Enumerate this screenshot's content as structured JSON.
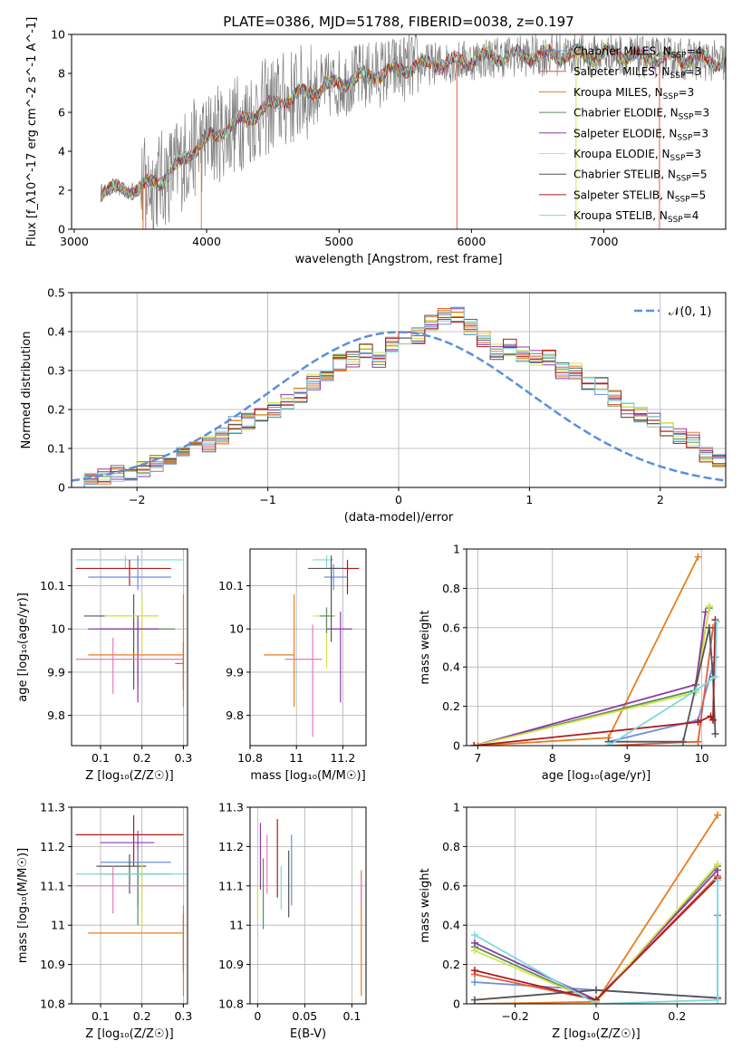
{
  "figure_title": "PLATE=0386, MJD=51788, FIBERID=0038, z=0.197",
  "colors": {
    "Chabrier MILES": "#6a8fdc",
    "Salpeter MILES": "#e25d3a",
    "Kroupa MILES": "#e67e22",
    "Chabrier ELODIE": "#5a8f5a",
    "Salpeter ELODIE": "#8e3aa8",
    "Kroupa ELODIE": "#d7e34a",
    "Chabrier STELIB": "#555555",
    "Salpeter STELIB": "#b01a1a",
    "Kroupa STELIB": "#7fd7e0",
    "Pink": "#ee77bb",
    "Normal": "#5b8fd9",
    "data": "#808080"
  },
  "chart_data": [
    {
      "id": "spectrum",
      "type": "line",
      "title": "PLATE=0386, MJD=51788, FIBERID=0038, z=0.197",
      "xlabel": "wavelength [Angstrom, rest frame]",
      "ylabel": "Flux [f_λ10^-17 erg cm^-2 s^-1 A^-1]",
      "xlim": [
        2980,
        7920
      ],
      "ylim": [
        0,
        10
      ],
      "xticks": [
        3000,
        4000,
        5000,
        6000,
        7000
      ],
      "yticks": [
        0,
        2,
        4,
        6,
        8,
        10
      ],
      "grid": false,
      "legend_position": "top-right",
      "x_range_data": [
        3200,
        7920
      ],
      "legend": [
        {
          "model": "Chabrier MILES",
          "nssp": "4"
        },
        {
          "model": "Salpeter MILES",
          "nssp": "3"
        },
        {
          "model": "Kroupa MILES",
          "nssp": "3"
        },
        {
          "model": "Chabrier ELODIE",
          "nssp": "3"
        },
        {
          "model": "Salpeter ELODIE",
          "nssp": "3"
        },
        {
          "model": "Kroupa ELODIE",
          "nssp": "3"
        },
        {
          "model": "Chabrier STELIB",
          "nssp": "5"
        },
        {
          "model": "Salpeter STELIB",
          "nssp": "5"
        },
        {
          "model": "Kroupa STELIB",
          "nssp": "4"
        }
      ],
      "continuum": {
        "x": [
          3200,
          3500,
          3700,
          3900,
          4100,
          4300,
          4500,
          4700,
          4900,
          5100,
          5300,
          5500,
          5700,
          5900,
          6100,
          6300,
          6500,
          6700,
          6900,
          7100,
          7300,
          7500,
          7700,
          7900
        ],
        "y": [
          2.0,
          2.1,
          2.7,
          4.1,
          5.0,
          5.7,
          6.4,
          6.9,
          7.3,
          7.7,
          8.0,
          8.3,
          8.5,
          8.6,
          8.8,
          8.9,
          8.9,
          9.0,
          8.9,
          9.0,
          8.8,
          8.8,
          8.7,
          8.6
        ]
      }
    },
    {
      "id": "residuals",
      "type": "histogram",
      "xlabel": "(data-model)/error",
      "ylabel": "Normed distribution",
      "xlim": [
        -2.5,
        2.5
      ],
      "ylim": [
        0,
        0.5
      ],
      "xticks": [
        -2,
        -1,
        0,
        1,
        2
      ],
      "yticks": [
        0.0,
        0.1,
        0.2,
        0.3,
        0.4,
        0.5
      ],
      "grid": true,
      "legend_position": "top-right",
      "normal_label": "𝒩(0, 1)",
      "bin_width": 0.1,
      "bin_start": -2.5,
      "base_values": [
        0.02,
        0.025,
        0.03,
        0.035,
        0.04,
        0.05,
        0.06,
        0.07,
        0.09,
        0.095,
        0.11,
        0.13,
        0.16,
        0.17,
        0.19,
        0.2,
        0.22,
        0.24,
        0.27,
        0.29,
        0.32,
        0.33,
        0.35,
        0.33,
        0.37,
        0.38,
        0.39,
        0.42,
        0.44,
        0.44,
        0.41,
        0.38,
        0.35,
        0.36,
        0.34,
        0.33,
        0.33,
        0.3,
        0.3,
        0.27,
        0.26,
        0.23,
        0.2,
        0.19,
        0.17,
        0.15,
        0.13,
        0.12,
        0.08,
        0.07,
        0.06
      ],
      "models": [
        "Chabrier MILES",
        "Salpeter MILES",
        "Kroupa MILES",
        "Chabrier ELODIE",
        "Salpeter ELODIE",
        "Kroupa ELODIE",
        "Chabrier STELIB",
        "Salpeter STELIB",
        "Kroupa STELIB"
      ]
    },
    {
      "id": "age_vs_Z",
      "type": "errorbar",
      "xlabel": "Z [log₁₀(Z/Z☉)]",
      "ylabel": "age  [log₁₀(age/yr)]",
      "xlim": [
        0.03,
        0.31
      ],
      "ylim": [
        9.73,
        10.185
      ],
      "xticks": [
        0.1,
        0.2,
        0.3
      ],
      "yticks": [
        9.8,
        9.9,
        10.0,
        10.1
      ],
      "grid": true,
      "points": [
        {
          "model": "Kroupa STELIB",
          "x": 0.16,
          "xerr": [
            0.12,
            0.14
          ],
          "y": 10.16,
          "yerr": [
            0.02,
            0.01
          ]
        },
        {
          "model": "Salpeter STELIB",
          "x": 0.17,
          "xerr": [
            0.13,
            0.1
          ],
          "y": 10.14,
          "yerr": [
            0.04,
            0.02
          ]
        },
        {
          "model": "Chabrier MILES",
          "x": 0.19,
          "xerr": [
            0.12,
            0.08
          ],
          "y": 10.12,
          "yerr": [
            0.03,
            0.05
          ]
        },
        {
          "model": "Chabrier STELIB",
          "x": 0.18,
          "xerr": [
            0.12,
            0.06
          ],
          "y": 10.03,
          "yerr": [
            0.17,
            0.05
          ]
        },
        {
          "model": "Kroupa ELODIE",
          "x": 0.2,
          "xerr": [
            0.09,
            0.04
          ],
          "y": 10.03,
          "yerr": [
            0.08,
            0.05
          ]
        },
        {
          "model": "Chabrier ELODIE",
          "x": 0.19,
          "xerr": [
            0.09,
            0.09
          ],
          "y": 10.0,
          "yerr": [
            0.13,
            0.02
          ]
        },
        {
          "model": "Salpeter ELODIE",
          "x": 0.19,
          "xerr": [
            0.12,
            0.05
          ],
          "y": 10.0,
          "yerr": [
            0.17,
            0.03
          ]
        },
        {
          "model": "Kroupa MILES",
          "x": 0.3,
          "xerr": [
            0.23,
            0.0
          ],
          "y": 9.94,
          "yerr": [
            0.12,
            0.14
          ]
        },
        {
          "model": "Pink",
          "x": 0.13,
          "xerr": [
            0.09,
            0.17
          ],
          "y": 9.93,
          "yerr": [
            0.08,
            0.05
          ]
        },
        {
          "model": "Salpeter MILES",
          "x": 0.3,
          "xerr": [
            0.02,
            0.0
          ],
          "y": 9.92,
          "yerr": [
            0.06,
            0.05
          ]
        }
      ]
    },
    {
      "id": "age_vs_mass",
      "type": "errorbar",
      "xlabel": "mass [log₁₀(M/M☉)]",
      "ylabel": "",
      "xlim": [
        10.8,
        11.3
      ],
      "ylim": [
        9.73,
        10.185
      ],
      "xticks": [
        10.8,
        11.0,
        11.2
      ],
      "yticks": [
        9.8,
        9.9,
        10.0,
        10.1
      ],
      "grid": true,
      "points": [
        {
          "model": "Kroupa STELIB",
          "x": 11.13,
          "xerr": [
            0.06,
            0.03
          ],
          "y": 10.16,
          "yerr": [
            0.02,
            0.01
          ]
        },
        {
          "model": "Salpeter STELIB",
          "x": 11.22,
          "xerr": [
            0.08,
            0.05
          ],
          "y": 10.14,
          "yerr": [
            0.06,
            0.02
          ]
        },
        {
          "model": "Chabrier MILES",
          "x": 11.16,
          "xerr": [
            0.04,
            0.06
          ],
          "y": 10.12,
          "yerr": [
            0.03,
            0.03
          ]
        },
        {
          "model": "Chabrier STELIB",
          "x": 11.15,
          "xerr": [
            0.1,
            0.05
          ],
          "y": 10.14,
          "yerr": [
            0.17,
            0.03
          ]
        },
        {
          "model": "Kroupa ELODIE",
          "x": 11.13,
          "xerr": [
            0.06,
            0.04
          ],
          "y": 10.03,
          "yerr": [
            0.12,
            0.02
          ]
        },
        {
          "model": "Chabrier ELODIE",
          "x": 11.13,
          "xerr": [
            0.03,
            0.03
          ],
          "y": 10.03,
          "yerr": [
            0.04,
            0.02
          ]
        },
        {
          "model": "Salpeter ELODIE",
          "x": 11.19,
          "xerr": [
            0.06,
            0.05
          ],
          "y": 10.0,
          "yerr": [
            0.17,
            0.04
          ]
        },
        {
          "model": "Kroupa MILES",
          "x": 10.99,
          "xerr": [
            0.13,
            0.0
          ],
          "y": 9.94,
          "yerr": [
            0.12,
            0.14
          ]
        },
        {
          "model": "Pink",
          "x": 11.07,
          "xerr": [
            0.12,
            0.04
          ],
          "y": 9.93,
          "yerr": [
            0.18,
            0.08
          ]
        }
      ]
    },
    {
      "id": "massweight_vs_age",
      "type": "line",
      "xlabel": "age  [log₁₀(age/yr)]",
      "ylabel": "mass weight",
      "xlim": [
        6.85,
        10.32
      ],
      "ylim": [
        0,
        1
      ],
      "xticks": [
        7,
        8,
        9,
        10
      ],
      "yticks": [
        0.0,
        0.2,
        0.4,
        0.6,
        0.8,
        1.0
      ],
      "grid": true,
      "series": [
        {
          "model": "Chabrier MILES",
          "x": [
            8.75,
            9.95,
            10.18
          ],
          "y": [
            0.02,
            0.13,
            0.45
          ]
        },
        {
          "model": "Salpeter MILES",
          "x": [
            8.75,
            9.95,
            10.15
          ],
          "y": [
            0.0,
            0.02,
            0.6
          ]
        },
        {
          "model": "Kroupa MILES",
          "x": [
            7.0,
            8.75,
            9.95
          ],
          "y": [
            0.0,
            0.04,
            0.96
          ]
        },
        {
          "model": "Chabrier ELODIE",
          "x": [
            6.95,
            9.9,
            10.1
          ],
          "y": [
            0.0,
            0.28,
            0.7
          ]
        },
        {
          "model": "Salpeter ELODIE",
          "x": [
            6.95,
            9.92,
            10.05
          ],
          "y": [
            0.0,
            0.31,
            0.68
          ]
        },
        {
          "model": "Kroupa ELODIE",
          "x": [
            6.95,
            9.92,
            10.1
          ],
          "y": [
            0.0,
            0.27,
            0.71
          ]
        },
        {
          "model": "Chabrier STELIB",
          "x": [
            8.75,
            9.75,
            10.1,
            10.15,
            10.18
          ],
          "y": [
            0.02,
            0.02,
            0.6,
            0.35,
            0.06
          ]
        },
        {
          "model": "Salpeter STELIB",
          "x": [
            6.95,
            9.95,
            10.12,
            10.15,
            10.18
          ],
          "y": [
            0.0,
            0.12,
            0.15,
            0.13,
            0.64
          ]
        },
        {
          "model": "Kroupa STELIB",
          "x": [
            8.75,
            9.92,
            10.18,
            10.2
          ],
          "y": [
            0.0,
            0.28,
            0.35,
            0.63
          ]
        }
      ]
    },
    {
      "id": "mass_vs_Z",
      "type": "errorbar",
      "xlabel": "Z [log₁₀(Z/Z☉)]",
      "ylabel": "mass [log₁₀(M/M☉)]",
      "xlim": [
        0.03,
        0.31
      ],
      "ylim": [
        10.8,
        11.3
      ],
      "xticks": [
        0.1,
        0.2,
        0.3
      ],
      "yticks": [
        10.8,
        10.9,
        11.0,
        11.1,
        11.2,
        11.3
      ],
      "grid": true,
      "points": [
        {
          "model": "Salpeter STELIB",
          "x": 0.18,
          "xerr": [
            0.14,
            0.12
          ],
          "y": 11.23,
          "yerr": [
            0.08,
            0.05
          ]
        },
        {
          "model": "Salpeter ELODIE",
          "x": 0.19,
          "xerr": [
            0.09,
            0.04
          ],
          "y": 11.21,
          "yerr": [
            0.16,
            0.03
          ]
        },
        {
          "model": "Chabrier MILES",
          "x": 0.19,
          "xerr": [
            0.09,
            0.08
          ],
          "y": 11.16,
          "yerr": [
            0.1,
            0.03
          ]
        },
        {
          "model": "Chabrier STELIB",
          "x": 0.17,
          "xerr": [
            0.08,
            0.04
          ],
          "y": 11.15,
          "yerr": [
            0.07,
            0.03
          ]
        },
        {
          "model": "Kroupa ELODIE",
          "x": 0.2,
          "xerr": [
            0.11,
            0.0
          ],
          "y": 11.13,
          "yerr": [
            0.14,
            0.03
          ]
        },
        {
          "model": "Chabrier ELODIE",
          "x": 0.19,
          "xerr": [
            0.09,
            0.08
          ],
          "y": 11.13,
          "yerr": [
            0.13,
            0.03
          ]
        },
        {
          "model": "Kroupa STELIB",
          "x": 0.16,
          "xerr": [
            0.12,
            0.15
          ],
          "y": 11.13,
          "yerr": [
            0.0,
            0.0
          ]
        },
        {
          "model": "Pink",
          "x": 0.13,
          "xerr": [
            0.09,
            0.17
          ],
          "y": 11.1,
          "yerr": [
            0.07,
            0.05
          ]
        },
        {
          "model": "Kroupa MILES",
          "x": 0.3,
          "xerr": [
            0.23,
            0.0
          ],
          "y": 10.98,
          "yerr": [
            0.16,
            0.07
          ]
        },
        {
          "model": "Salpeter MILES",
          "x": 0.3,
          "xerr": [
            0.0,
            0.0
          ],
          "y": 10.98,
          "yerr": [
            0.1,
            0.05
          ]
        }
      ]
    },
    {
      "id": "mass_vs_ebv",
      "type": "errorbar",
      "xlabel": "E(B-V)",
      "ylabel": "",
      "xlim": [
        -0.008,
        0.115
      ],
      "ylim": [
        10.8,
        11.3
      ],
      "xticks": [
        0.0,
        0.05,
        0.1
      ],
      "yticks": [
        10.8,
        10.9,
        11.0,
        11.1,
        11.2,
        11.3
      ],
      "grid": true,
      "points": [
        {
          "model": "Kroupa ELODIE",
          "x": 0.0,
          "yerr": [
            0.07,
            0.02
          ],
          "y": 11.09
        },
        {
          "model": "Salpeter ELODIE",
          "x": 0.003,
          "yerr": [
            0.08,
            0.09
          ],
          "y": 11.17
        },
        {
          "model": "Chabrier ELODIE",
          "x": 0.006,
          "yerr": [
            0.1,
            0.08
          ],
          "y": 11.09
        },
        {
          "model": "Pink",
          "x": 0.01,
          "yerr": [
            0.1,
            0.05
          ],
          "y": 11.18
        },
        {
          "model": "Salpeter STELIB",
          "x": 0.021,
          "yerr": [
            0.14,
            0.06
          ],
          "y": 11.21
        },
        {
          "model": "Kroupa STELIB",
          "x": 0.025,
          "yerr": [
            0.06,
            0.05
          ],
          "y": 11.1
        },
        {
          "model": "Chabrier STELIB",
          "x": 0.033,
          "yerr": [
            0.13,
            0.04
          ],
          "y": 11.15
        },
        {
          "model": "Chabrier MILES",
          "x": 0.036,
          "yerr": [
            0.12,
            0.06
          ],
          "y": 11.17
        },
        {
          "model": "Kroupa MILES",
          "x": 0.11,
          "yerr": [
            0.23,
            0.09
          ],
          "y": 11.05
        },
        {
          "model": "Pink",
          "x": 0.11,
          "yerr": [
            0.04,
            0.03
          ],
          "y": 11.1
        }
      ]
    },
    {
      "id": "massweight_vs_Z",
      "type": "line",
      "xlabel": "Z [log₁₀(Z/Z☉)]",
      "ylabel": "mass weight",
      "xlim": [
        -0.32,
        0.32
      ],
      "ylim": [
        0,
        1
      ],
      "xticks": [
        -0.2,
        0.0,
        0.2
      ],
      "yticks": [
        0.0,
        0.2,
        0.4,
        0.6,
        0.8,
        1.0
      ],
      "grid": true,
      "series": [
        {
          "model": "Chabrier MILES",
          "x": [
            -0.3,
            0.0,
            0.3,
            0.3
          ],
          "y": [
            0.11,
            0.07,
            0.03,
            0.45
          ]
        },
        {
          "model": "Salpeter MILES",
          "x": [
            -0.3,
            0.0,
            0.3
          ],
          "y": [
            0.15,
            0.02,
            0.65
          ]
        },
        {
          "model": "Kroupa MILES",
          "x": [
            -0.3,
            0.0,
            0.3
          ],
          "y": [
            0.0,
            0.01,
            0.96
          ]
        },
        {
          "model": "Chabrier ELODIE",
          "x": [
            -0.3,
            0.0,
            0.3
          ],
          "y": [
            0.29,
            0.01,
            0.7
          ]
        },
        {
          "model": "Salpeter ELODIE",
          "x": [
            -0.3,
            0.0,
            0.3
          ],
          "y": [
            0.31,
            0.02,
            0.68
          ]
        },
        {
          "model": "Kroupa ELODIE",
          "x": [
            -0.3,
            0.0,
            0.3
          ],
          "y": [
            0.27,
            0.01,
            0.71
          ]
        },
        {
          "model": "Chabrier STELIB",
          "x": [
            -0.3,
            0.0,
            0.3
          ],
          "y": [
            0.02,
            0.07,
            0.03
          ]
        },
        {
          "model": "Salpeter STELIB",
          "x": [
            -0.3,
            0.0,
            0.3
          ],
          "y": [
            0.17,
            0.02,
            0.64
          ]
        },
        {
          "model": "Kroupa STELIB",
          "x": [
            -0.3,
            0.0,
            0.3,
            0.3
          ],
          "y": [
            0.35,
            0.0,
            0.02,
            0.63
          ]
        }
      ]
    }
  ]
}
